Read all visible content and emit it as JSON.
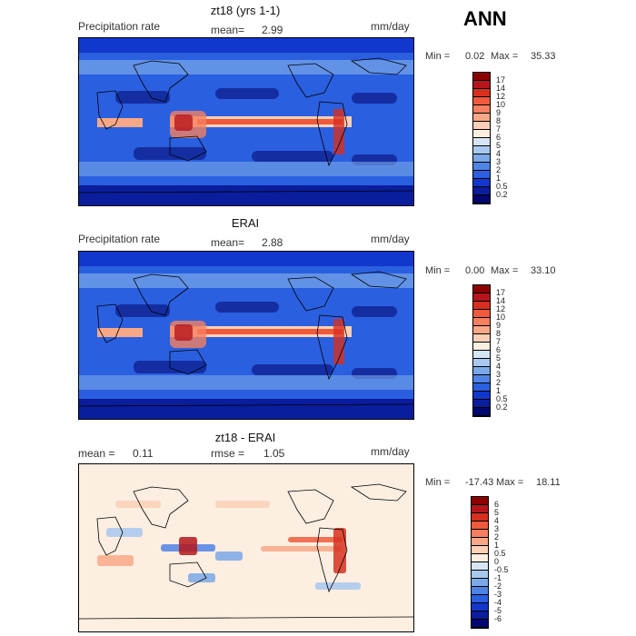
{
  "season": "ANN",
  "panels": [
    {
      "id": "model",
      "title": "zt18 (yrs 1-1)",
      "left_label": "Precipitation rate",
      "mid_label": "mean=",
      "mid_value": "2.99",
      "units": "mm/day",
      "min_label": "Min =",
      "min_value": "0.02",
      "max_label": "Max =",
      "max_value": "35.33"
    },
    {
      "id": "obs",
      "title": "ERAI",
      "left_label": "Precipitation rate",
      "mid_label": "mean=",
      "mid_value": "2.88",
      "units": "mm/day",
      "min_label": "Min =",
      "min_value": "0.00",
      "max_label": "Max =",
      "max_value": "33.10"
    },
    {
      "id": "diff",
      "title": "zt18 - ERAI",
      "left_label": "mean =",
      "left_value": "0.11",
      "mid_label": "rmse =",
      "mid_value": "1.05",
      "units": "mm/day",
      "min_label": "Min =",
      "min_value": "-17.43",
      "max_label": "Max =",
      "max_value": "18.11"
    }
  ],
  "chart_data": [
    {
      "type": "heatmap",
      "title": "zt18 (yrs 1-1)",
      "variable": "Precipitation rate",
      "units": "mm/day",
      "mean": 2.99,
      "min": 0.02,
      "max": 35.33,
      "colorbar_levels": [
        "17",
        "14",
        "12",
        "10",
        "9",
        "8",
        "7",
        "6",
        "5",
        "4",
        "3",
        "2",
        "1",
        "0.5",
        "0.2"
      ],
      "colorbar_colors": [
        "#8b0000",
        "#b5161b",
        "#d7301f",
        "#ef5a3c",
        "#f57f5f",
        "#f9a887",
        "#fcd0b6",
        "#fdeee2",
        "#d6e5f5",
        "#a9c8ee",
        "#7aa8e8",
        "#4f84e5",
        "#2a5fe0",
        "#1237cc",
        "#0a1d9c",
        "#02066f"
      ]
    },
    {
      "type": "heatmap",
      "title": "ERAI",
      "variable": "Precipitation rate",
      "units": "mm/day",
      "mean": 2.88,
      "min": 0.0,
      "max": 33.1,
      "colorbar_levels": [
        "17",
        "14",
        "12",
        "10",
        "9",
        "8",
        "7",
        "6",
        "5",
        "4",
        "3",
        "2",
        "1",
        "0.5",
        "0.2"
      ],
      "colorbar_colors": [
        "#8b0000",
        "#b5161b",
        "#d7301f",
        "#ef5a3c",
        "#f57f5f",
        "#f9a887",
        "#fcd0b6",
        "#fdeee2",
        "#d6e5f5",
        "#a9c8ee",
        "#7aa8e8",
        "#4f84e5",
        "#2a5fe0",
        "#1237cc",
        "#0a1d9c",
        "#02066f"
      ]
    },
    {
      "type": "heatmap",
      "title": "zt18 - ERAI",
      "units": "mm/day",
      "mean": 0.11,
      "rmse": 1.05,
      "min": -17.43,
      "max": 18.11,
      "colorbar_levels": [
        "6",
        "5",
        "4",
        "3",
        "2",
        "1",
        "0.5",
        "0",
        "-0.5",
        "-1",
        "-2",
        "-3",
        "-4",
        "-5",
        "-6"
      ],
      "colorbar_colors": [
        "#8b0000",
        "#b5161b",
        "#d7301f",
        "#ef5a3c",
        "#f57f5f",
        "#f9a887",
        "#fcd0b6",
        "#fdeee2",
        "#d6e5f5",
        "#a9c8ee",
        "#7aa8e8",
        "#4f84e5",
        "#2a5fe0",
        "#1237cc",
        "#0a1d9c",
        "#02066f"
      ]
    }
  ]
}
